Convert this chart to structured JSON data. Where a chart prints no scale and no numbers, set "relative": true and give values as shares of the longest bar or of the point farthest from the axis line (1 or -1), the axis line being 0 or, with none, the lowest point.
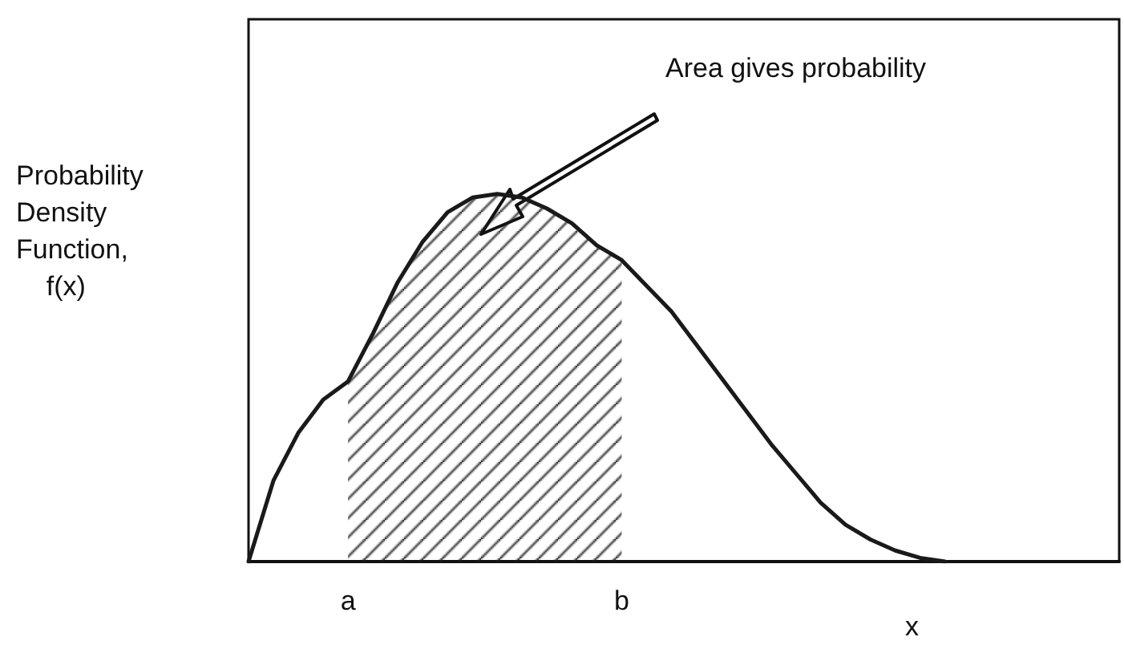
{
  "chart_data": {
    "type": "line",
    "relative": true,
    "xlabel": "x",
    "ylabel": "Probability\nDensity\nFunction,\n    f(x)",
    "tick_labels": "x",
    "marker": "none",
    "line_style": "solid",
    "grid": false,
    "annotations": [
      "Area gives probability"
    ],
    "categories": [
      null,
      null,
      null,
      null,
      "a",
      null,
      null,
      null,
      null,
      null,
      null,
      null,
      null,
      null,
      null,
      "b",
      null,
      null,
      null,
      null,
      null,
      null,
      null,
      null,
      null,
      null,
      null,
      null,
      null,
      null,
      null,
      null,
      null,
      null,
      null,
      null
    ],
    "series": [
      {
        "color": "#1a1a1a",
        "values": [
          0,
          0.22,
          0.35,
          0.44,
          0.49,
          0.62,
          0.76,
          0.87,
          0.95,
          0.99,
          1,
          0.99,
          0.96,
          0.92,
          0.86,
          0.82,
          0.75,
          0.68,
          0.59,
          0.5,
          0.41,
          0.32,
          0.24,
          0.16,
          0.1,
          0.06,
          0.03,
          0.01,
          0,
          null,
          null,
          null,
          null,
          null,
          null,
          null
        ]
      },
      {
        "type": "area",
        "color": "#1a1a1a",
        "values": [
          null,
          null,
          null,
          null,
          0.49,
          0.62,
          0.76,
          0.87,
          0.95,
          0.99,
          1,
          0.99,
          0.96,
          0.92,
          0.86,
          0.82,
          null,
          null,
          null,
          null,
          null,
          null,
          null,
          null,
          null,
          null,
          null,
          null,
          null,
          null,
          null,
          null,
          null,
          null,
          null,
          null
        ]
      }
    ]
  }
}
